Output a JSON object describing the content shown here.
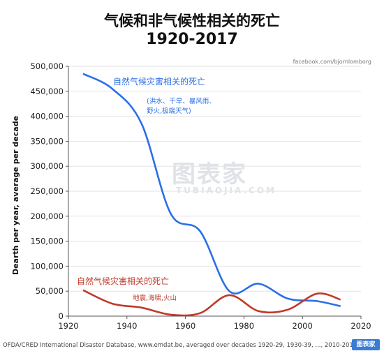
{
  "header": {
    "title": "气候和非气候性相关的死亡",
    "subtitle": "1920-2017",
    "credit": "facebook.com/bjornlomborg"
  },
  "footer": {
    "source": "OFDA/CRED International Disaster Database, www.emdat.be, averaged over decades 1920-29, 1930-39, ..., 2010-2017",
    "logo_text": "图表家"
  },
  "watermark": {
    "cn": "图表家",
    "en": "TUBIAOJIA.COM"
  },
  "chart_data": {
    "type": "line",
    "ylabel": "Dearth per year, average per decade",
    "xlabel": "",
    "xlim": [
      1920,
      2020
    ],
    "ylim": [
      0,
      500000
    ],
    "xticks": [
      1920,
      1940,
      1960,
      1980,
      2000,
      2020
    ],
    "yticks": [
      0,
      50000,
      100000,
      150000,
      200000,
      250000,
      300000,
      350000,
      400000,
      450000,
      500000
    ],
    "ytick_labels": [
      "0",
      "50,000",
      "100,000",
      "150,000",
      "200,000",
      "250,000",
      "300,000",
      "350,000",
      "400,000",
      "450,000",
      "500,000"
    ],
    "grid": true,
    "series": [
      {
        "name": "自然气候灾害相关的死亡",
        "annotation": "(洪水、干旱、暴风雨、野火,极端天气)",
        "color": "#2b6fe6",
        "x": [
          1925,
          1935,
          1945,
          1955,
          1965,
          1975,
          1985,
          1995,
          2005,
          2013
        ],
        "y": [
          485000,
          455000,
          385000,
          205000,
          170000,
          50000,
          65000,
          35000,
          30000,
          20000
        ]
      },
      {
        "name": "自然气候灾害相关的死亡",
        "annotation": "地震,海啸,火山",
        "color": "#c0392b",
        "x": [
          1925,
          1935,
          1945,
          1955,
          1965,
          1975,
          1985,
          1995,
          2005,
          2013
        ],
        "y": [
          52000,
          25000,
          17000,
          3000,
          6000,
          42000,
          10000,
          13000,
          45000,
          33000
        ]
      }
    ]
  }
}
